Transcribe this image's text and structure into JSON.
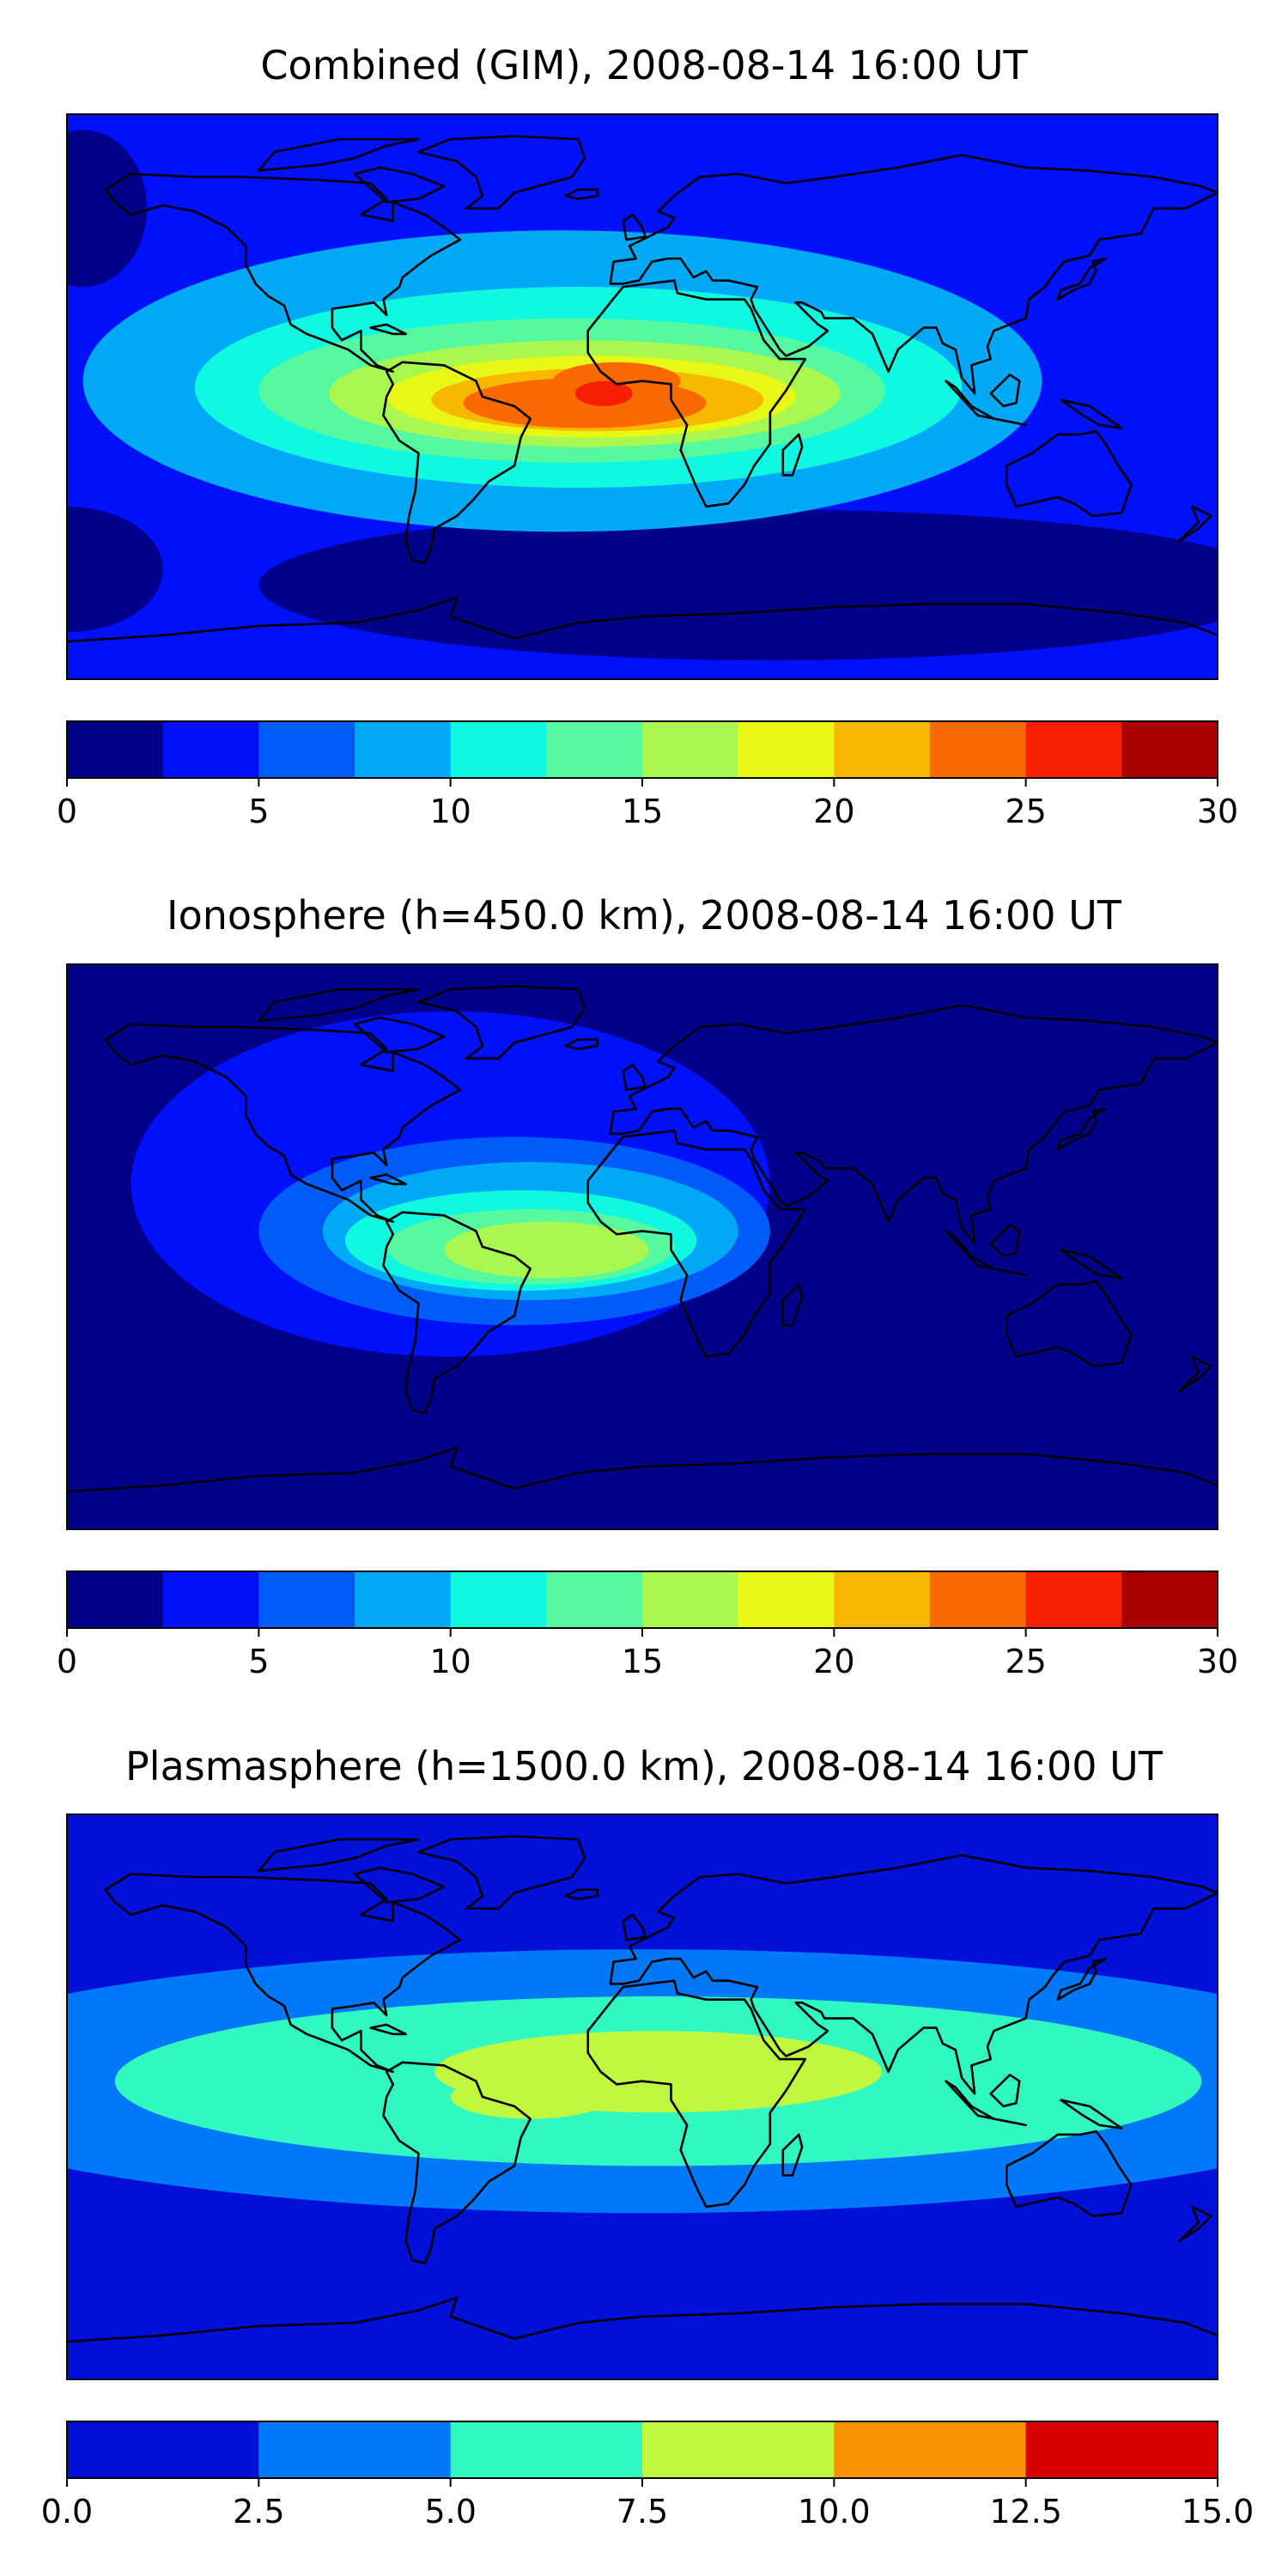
{
  "chart_data": [
    {
      "type": "heatmap",
      "title": "Combined (GIM), 2008-08-14 16:00 UT",
      "colorbar": {
        "levels": [
          0,
          2.5,
          5,
          7.5,
          10,
          12.5,
          15,
          17.5,
          20,
          22.5,
          25,
          27.5,
          30
        ],
        "tick_values": [
          0,
          5,
          10,
          15,
          20,
          25,
          30
        ],
        "tick_labels": [
          "0",
          "5",
          "10",
          "15",
          "20",
          "25",
          "30"
        ],
        "colors": [
          "#00008a",
          "#0010f8",
          "#005cf8",
          "#00a8f8",
          "#10f8e0",
          "#56f8a0",
          "#a8f850",
          "#e8f814",
          "#f8b800",
          "#f86a00",
          "#f81e00",
          "#a80000"
        ]
      },
      "blobs": [
        {
          "lon": -25,
          "lat": 5,
          "rx": 150,
          "ry": 48,
          "value": 8.5
        },
        {
          "lon": -20,
          "lat": 3,
          "rx": 120,
          "ry": 32,
          "value": 11
        },
        {
          "lon": -22,
          "lat": 2,
          "rx": 98,
          "ry": 23,
          "value": 14
        },
        {
          "lon": -18,
          "lat": 1,
          "rx": 80,
          "ry": 17,
          "value": 16.5
        },
        {
          "lon": -16,
          "lat": 0,
          "rx": 64,
          "ry": 13,
          "value": 19
        },
        {
          "lon": -14,
          "lat": -1,
          "rx": 52,
          "ry": 10,
          "value": 21
        },
        {
          "lon": -18,
          "lat": -2,
          "rx": 38,
          "ry": 8,
          "value": 23.5
        },
        {
          "lon": -8,
          "lat": 5,
          "rx": 20,
          "ry": 6,
          "value": 23.5
        },
        {
          "lon": -12,
          "lat": 1,
          "rx": 9,
          "ry": 4,
          "value": 26
        }
      ],
      "background_value": 4,
      "low_regions": [
        {
          "lon": 40,
          "lat": -60,
          "rx": 160,
          "ry": 24,
          "value": 1
        },
        {
          "lon": -180,
          "lat": -55,
          "rx": 30,
          "ry": 20,
          "value": 1
        },
        {
          "lon": -175,
          "lat": 60,
          "rx": 20,
          "ry": 25,
          "value": 1
        }
      ]
    },
    {
      "type": "heatmap",
      "title": "Ionosphere  (h=450.0 km), 2008-08-14 16:00 UT",
      "colorbar": {
        "levels": [
          0,
          2.5,
          5,
          7.5,
          10,
          12.5,
          15,
          17.5,
          20,
          22.5,
          25,
          27.5,
          30
        ],
        "tick_values": [
          0,
          5,
          10,
          15,
          20,
          25,
          30
        ],
        "tick_labels": [
          "0",
          "5",
          "10",
          "15",
          "20",
          "25",
          "30"
        ],
        "colors": [
          "#00008a",
          "#0010f8",
          "#005cf8",
          "#00a8f8",
          "#10f8e0",
          "#56f8a0",
          "#a8f850",
          "#e8f814",
          "#f8b800",
          "#f86a00",
          "#f81e00",
          "#a80000"
        ]
      },
      "blobs": [
        {
          "lon": -60,
          "lat": 20,
          "rx": 100,
          "ry": 55,
          "value": 4
        },
        {
          "lon": -40,
          "lat": 5,
          "rx": 80,
          "ry": 30,
          "value": 7
        },
        {
          "lon": -35,
          "lat": 5,
          "rx": 65,
          "ry": 22,
          "value": 9
        },
        {
          "lon": -38,
          "lat": 2,
          "rx": 55,
          "ry": 16,
          "value": 11
        },
        {
          "lon": -35,
          "lat": 0,
          "rx": 45,
          "ry": 12,
          "value": 13.5
        },
        {
          "lon": -30,
          "lat": -1,
          "rx": 32,
          "ry": 9,
          "value": 16
        }
      ],
      "background_value": 1,
      "low_regions": []
    },
    {
      "type": "heatmap",
      "title": "Plasmasphere (h=1500.0 km), 2008-08-14 16:00 UT",
      "colorbar": {
        "levels": [
          0,
          2.5,
          5,
          7.5,
          10,
          12.5,
          15
        ],
        "tick_values": [
          0,
          2.5,
          5,
          7.5,
          10,
          12.5,
          15
        ],
        "tick_labels": [
          "0.0",
          "2.5",
          "5.0",
          "7.5",
          "10.0",
          "12.5",
          "15.0"
        ],
        "colors": [
          "#0010d8",
          "#0078f8",
          "#30f8c0",
          "#c0f840",
          "#f89000",
          "#d80000"
        ]
      },
      "blobs": [
        {
          "lon": 0,
          "lat": 5,
          "rx": 240,
          "ry": 42,
          "value": 3.5
        },
        {
          "lon": 5,
          "lat": 5,
          "rx": 170,
          "ry": 27,
          "value": 6
        },
        {
          "lon": 5,
          "lat": 8,
          "rx": 70,
          "ry": 13,
          "value": 8.5
        },
        {
          "lon": -35,
          "lat": 0,
          "rx": 25,
          "ry": 7,
          "value": 8.5
        }
      ],
      "background_value": 1,
      "low_regions": []
    }
  ]
}
